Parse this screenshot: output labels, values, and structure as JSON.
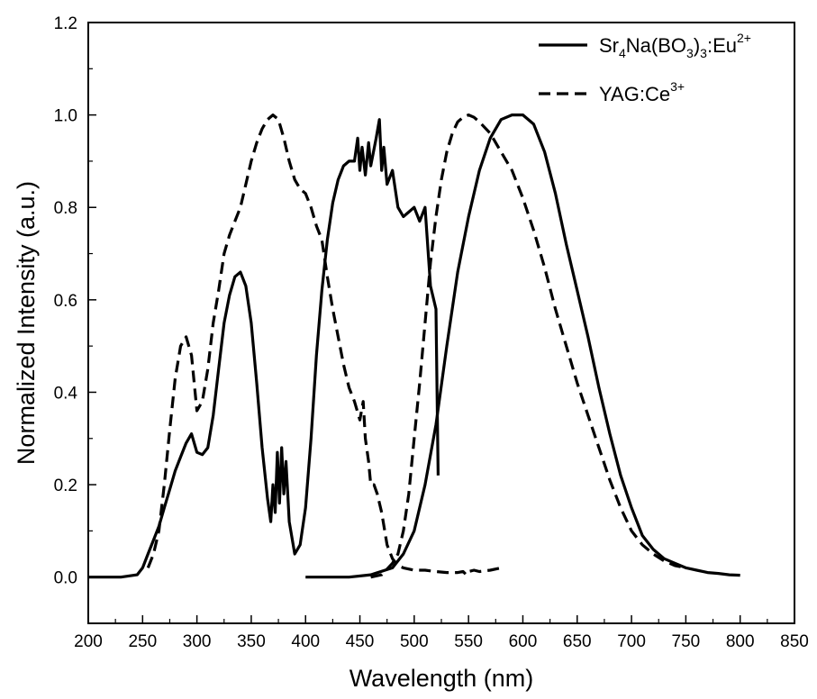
{
  "chart_data": {
    "type": "line",
    "title": "",
    "xlabel": "Wavelength (nm)",
    "ylabel": "Normalized Intensity (a.u.)",
    "xlim": [
      200,
      850
    ],
    "ylim": [
      -0.1,
      1.2
    ],
    "xticks": [
      "200",
      "250",
      "300",
      "350",
      "400",
      "450",
      "500",
      "550",
      "600",
      "650",
      "700",
      "750",
      "800",
      "850"
    ],
    "yticks": [
      "0.0",
      "0.2",
      "0.4",
      "0.6",
      "0.8",
      "1.0",
      "1.2"
    ],
    "legend_position": "top-right",
    "series": [
      {
        "name": "Sr4Na(BO3)3:Eu2+",
        "label_parts": {
          "a": "Sr",
          "s1": "4",
          "b": "Na(BO",
          "s2": "3",
          "c": ")",
          "s3": "3",
          "d": ":Eu",
          "sup": "2+"
        },
        "style": "solid",
        "segments": [
          {
            "role": "excitation",
            "points": [
              [
                200,
                0.0
              ],
              [
                230,
                0.0
              ],
              [
                245,
                0.005
              ],
              [
                250,
                0.02
              ],
              [
                255,
                0.05
              ],
              [
                260,
                0.08
              ],
              [
                265,
                0.11
              ],
              [
                270,
                0.15
              ],
              [
                275,
                0.19
              ],
              [
                280,
                0.23
              ],
              [
                285,
                0.26
              ],
              [
                290,
                0.29
              ],
              [
                295,
                0.31
              ],
              [
                300,
                0.27
              ],
              [
                305,
                0.265
              ],
              [
                310,
                0.28
              ],
              [
                315,
                0.35
              ],
              [
                320,
                0.45
              ],
              [
                325,
                0.55
              ],
              [
                330,
                0.61
              ],
              [
                335,
                0.65
              ],
              [
                340,
                0.66
              ],
              [
                345,
                0.63
              ],
              [
                350,
                0.55
              ],
              [
                355,
                0.42
              ],
              [
                360,
                0.28
              ],
              [
                365,
                0.17
              ],
              [
                368,
                0.12
              ],
              [
                370,
                0.2
              ],
              [
                372,
                0.14
              ],
              [
                374,
                0.27
              ],
              [
                376,
                0.16
              ],
              [
                378,
                0.28
              ],
              [
                380,
                0.18
              ],
              [
                382,
                0.25
              ],
              [
                385,
                0.12
              ],
              [
                390,
                0.05
              ],
              [
                395,
                0.07
              ],
              [
                400,
                0.15
              ],
              [
                405,
                0.3
              ],
              [
                410,
                0.48
              ],
              [
                415,
                0.62
              ],
              [
                420,
                0.73
              ],
              [
                425,
                0.81
              ],
              [
                430,
                0.86
              ],
              [
                435,
                0.89
              ],
              [
                440,
                0.9
              ],
              [
                445,
                0.9
              ],
              [
                448,
                0.95
              ],
              [
                450,
                0.88
              ],
              [
                452,
                0.93
              ],
              [
                455,
                0.87
              ],
              [
                458,
                0.94
              ],
              [
                460,
                0.89
              ],
              [
                465,
                0.95
              ],
              [
                468,
                0.99
              ],
              [
                470,
                0.88
              ],
              [
                472,
                0.93
              ],
              [
                475,
                0.85
              ],
              [
                480,
                0.88
              ],
              [
                485,
                0.8
              ],
              [
                490,
                0.78
              ],
              [
                495,
                0.79
              ],
              [
                500,
                0.8
              ],
              [
                505,
                0.77
              ],
              [
                510,
                0.8
              ],
              [
                515,
                0.63
              ],
              [
                520,
                0.58
              ],
              [
                522,
                0.22
              ]
            ]
          },
          {
            "role": "emission",
            "points": [
              [
                400,
                0.0
              ],
              [
                440,
                0.0
              ],
              [
                460,
                0.005
              ],
              [
                480,
                0.02
              ],
              [
                490,
                0.05
              ],
              [
                500,
                0.1
              ],
              [
                510,
                0.2
              ],
              [
                520,
                0.33
              ],
              [
                530,
                0.5
              ],
              [
                540,
                0.66
              ],
              [
                550,
                0.78
              ],
              [
                560,
                0.88
              ],
              [
                570,
                0.95
              ],
              [
                580,
                0.99
              ],
              [
                590,
                1.0
              ],
              [
                600,
                1.0
              ],
              [
                610,
                0.98
              ],
              [
                620,
                0.92
              ],
              [
                630,
                0.83
              ],
              [
                640,
                0.72
              ],
              [
                650,
                0.62
              ],
              [
                660,
                0.52
              ],
              [
                670,
                0.41
              ],
              [
                680,
                0.31
              ],
              [
                690,
                0.22
              ],
              [
                700,
                0.15
              ],
              [
                710,
                0.09
              ],
              [
                720,
                0.06
              ],
              [
                730,
                0.04
              ],
              [
                740,
                0.03
              ],
              [
                750,
                0.02
              ],
              [
                760,
                0.015
              ],
              [
                770,
                0.01
              ],
              [
                780,
                0.008
              ],
              [
                790,
                0.005
              ],
              [
                800,
                0.004
              ]
            ]
          }
        ]
      },
      {
        "name": "YAG:Ce3+",
        "label_parts": {
          "a": "YAG:Ce",
          "sup": "3+"
        },
        "style": "dashed",
        "segments": [
          {
            "role": "excitation",
            "points": [
              [
                255,
                0.02
              ],
              [
                260,
                0.05
              ],
              [
                265,
                0.1
              ],
              [
                270,
                0.2
              ],
              [
                275,
                0.32
              ],
              [
                280,
                0.43
              ],
              [
                285,
                0.5
              ],
              [
                290,
                0.52
              ],
              [
                295,
                0.48
              ],
              [
                300,
                0.36
              ],
              [
                305,
                0.38
              ],
              [
                310,
                0.45
              ],
              [
                315,
                0.55
              ],
              [
                320,
                0.62
              ],
              [
                325,
                0.7
              ],
              [
                330,
                0.74
              ],
              [
                335,
                0.77
              ],
              [
                340,
                0.8
              ],
              [
                345,
                0.85
              ],
              [
                350,
                0.9
              ],
              [
                355,
                0.94
              ],
              [
                360,
                0.97
              ],
              [
                365,
                0.99
              ],
              [
                370,
                1.0
              ],
              [
                375,
                0.99
              ],
              [
                380,
                0.95
              ],
              [
                385,
                0.9
              ],
              [
                390,
                0.86
              ],
              [
                395,
                0.84
              ],
              [
                400,
                0.83
              ],
              [
                405,
                0.8
              ],
              [
                410,
                0.76
              ],
              [
                415,
                0.73
              ],
              [
                420,
                0.65
              ],
              [
                425,
                0.58
              ],
              [
                430,
                0.52
              ],
              [
                435,
                0.46
              ],
              [
                440,
                0.41
              ],
              [
                445,
                0.38
              ],
              [
                450,
                0.34
              ],
              [
                453,
                0.38
              ],
              [
                455,
                0.3
              ],
              [
                458,
                0.25
              ],
              [
                460,
                0.2
              ],
              [
                463,
                0.2
              ],
              [
                466,
                0.18
              ],
              [
                470,
                0.14
              ],
              [
                475,
                0.07
              ],
              [
                480,
                0.04
              ],
              [
                485,
                0.025
              ],
              [
                490,
                0.02
              ],
              [
                500,
                0.015
              ],
              [
                510,
                0.015
              ],
              [
                520,
                0.012
              ],
              [
                530,
                0.01
              ],
              [
                540,
                0.01
              ],
              [
                545,
                0.012
              ],
              [
                548,
                0.005
              ],
              [
                550,
                0.012
              ],
              [
                555,
                0.015
              ],
              [
                560,
                0.012
              ],
              [
                570,
                0.015
              ],
              [
                580,
                0.02
              ]
            ]
          },
          {
            "role": "emission",
            "points": [
              [
                460,
                0.0
              ],
              [
                470,
                0.005
              ],
              [
                480,
                0.03
              ],
              [
                485,
                0.05
              ],
              [
                490,
                0.1
              ],
              [
                495,
                0.18
              ],
              [
                500,
                0.3
              ],
              [
                505,
                0.42
              ],
              [
                510,
                0.55
              ],
              [
                515,
                0.68
              ],
              [
                520,
                0.78
              ],
              [
                525,
                0.86
              ],
              [
                530,
                0.92
              ],
              [
                535,
                0.96
              ],
              [
                540,
                0.985
              ],
              [
                545,
                0.995
              ],
              [
                550,
                1.0
              ],
              [
                555,
                0.995
              ],
              [
                560,
                0.985
              ],
              [
                570,
                0.96
              ],
              [
                580,
                0.92
              ],
              [
                590,
                0.88
              ],
              [
                600,
                0.82
              ],
              [
                610,
                0.75
              ],
              [
                620,
                0.67
              ],
              [
                630,
                0.58
              ],
              [
                640,
                0.5
              ],
              [
                650,
                0.42
              ],
              [
                660,
                0.35
              ],
              [
                670,
                0.28
              ],
              [
                680,
                0.21
              ],
              [
                690,
                0.15
              ],
              [
                700,
                0.1
              ],
              [
                710,
                0.07
              ],
              [
                720,
                0.05
              ],
              [
                730,
                0.035
              ],
              [
                740,
                0.025
              ],
              [
                750,
                0.02
              ]
            ]
          }
        ]
      }
    ]
  }
}
